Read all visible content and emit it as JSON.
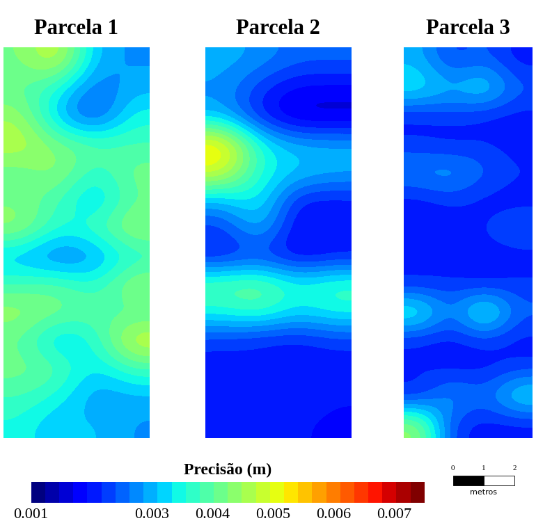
{
  "chart_data": [
    {
      "type": "heatmap",
      "title": "Parcela 1",
      "cells": [
        [
          0.0042,
          0.005,
          0.003,
          0.0028
        ],
        [
          0.004,
          0.0035,
          0.0025,
          0.003
        ],
        [
          0.0045,
          0.003,
          0.0022,
          0.0035
        ],
        [
          0.0048,
          0.0042,
          0.004,
          0.0038
        ],
        [
          0.004,
          0.0045,
          0.0035,
          0.0042
        ],
        [
          0.0042,
          0.0038,
          0.003,
          0.004
        ],
        [
          0.0045,
          0.0035,
          0.0038,
          0.0045
        ],
        [
          0.003,
          0.0025,
          0.0028,
          0.0035
        ],
        [
          0.0038,
          0.004,
          0.0035,
          0.0045
        ],
        [
          0.0045,
          0.0042,
          0.004,
          0.0038
        ],
        [
          0.004,
          0.003,
          0.0035,
          0.005
        ],
        [
          0.0042,
          0.004,
          0.0032,
          0.0038
        ],
        [
          0.0038,
          0.0035,
          0.0028,
          0.003
        ],
        [
          0.0035,
          0.003,
          0.0032,
          0.0028
        ]
      ]
    },
    {
      "type": "heatmap",
      "title": "Parcela 2",
      "cells": [
        [
          0.003,
          0.0028,
          0.0025,
          0.0025
        ],
        [
          0.0028,
          0.0022,
          0.0018,
          0.0018
        ],
        [
          0.003,
          0.002,
          0.0015,
          0.0015
        ],
        [
          0.0055,
          0.0035,
          0.003,
          0.003
        ],
        [
          0.005,
          0.0035,
          0.0032,
          0.003
        ],
        [
          0.003,
          0.0035,
          0.002,
          0.002
        ],
        [
          0.0022,
          0.0032,
          0.0018,
          0.002
        ],
        [
          0.002,
          0.0022,
          0.0018,
          0.002
        ],
        [
          0.004,
          0.0042,
          0.0035,
          0.0038
        ],
        [
          0.0035,
          0.0038,
          0.0032,
          0.0035
        ],
        [
          0.0022,
          0.002,
          0.002,
          0.0022
        ],
        [
          0.002,
          0.0022,
          0.002,
          0.002
        ],
        [
          0.0022,
          0.002,
          0.0022,
          0.002
        ],
        [
          0.002,
          0.0022,
          0.002,
          0.0018
        ]
      ]
    },
    {
      "type": "heatmap",
      "title": "Parcela 3",
      "cells": [
        [
          0.003,
          0.0022,
          0.0025,
          0.002
        ],
        [
          0.0035,
          0.003,
          0.0035,
          0.0025
        ],
        [
          0.002,
          0.0022,
          0.002,
          0.002
        ],
        [
          0.0022,
          0.002,
          0.0022,
          0.002
        ],
        [
          0.0028,
          0.003,
          0.0025,
          0.0022
        ],
        [
          0.002,
          0.0022,
          0.002,
          0.002
        ],
        [
          0.002,
          0.002,
          0.0022,
          0.0025
        ],
        [
          0.0022,
          0.002,
          0.002,
          0.002
        ],
        [
          0.002,
          0.0022,
          0.002,
          0.0022
        ],
        [
          0.0038,
          0.0025,
          0.004,
          0.0025
        ],
        [
          0.002,
          0.002,
          0.0022,
          0.002
        ],
        [
          0.0022,
          0.002,
          0.002,
          0.0022
        ],
        [
          0.002,
          0.003,
          0.0025,
          0.0035
        ],
        [
          0.0045,
          0.0022,
          0.002,
          0.002
        ]
      ]
    }
  ],
  "colorbar": {
    "title": "Precisão (m)",
    "range": [
      0.001,
      0.0075
    ],
    "ticks": [
      0.001,
      0.003,
      0.004,
      0.005,
      0.006,
      0.007
    ]
  },
  "scale_bar": {
    "ticks": [
      0,
      1,
      2
    ],
    "label": "metros"
  }
}
